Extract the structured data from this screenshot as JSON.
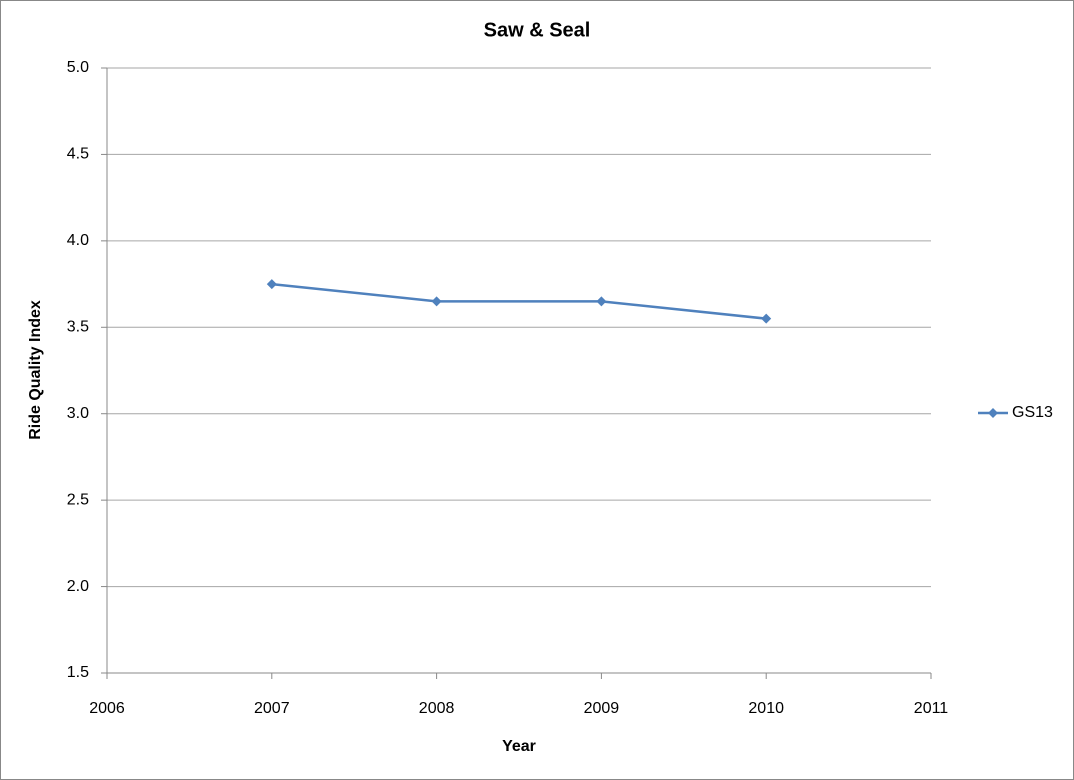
{
  "chart_data": {
    "type": "line",
    "title": "Saw & Seal",
    "xlabel": "Year",
    "ylabel": "Ride Quality Index",
    "x": [
      2007,
      2008,
      2009,
      2010
    ],
    "series": [
      {
        "name": "GS13",
        "color": "#4f81bd",
        "values": [
          3.75,
          3.65,
          3.65,
          3.55
        ]
      }
    ],
    "xlim": [
      2006,
      2011
    ],
    "xticks": [
      2006,
      2007,
      2008,
      2009,
      2010,
      2011
    ],
    "ylim": [
      1.5,
      5.0
    ],
    "yticks": [
      1.5,
      {
        "value": 2.0,
        "label": "2.0"
      },
      2.5,
      {
        "value": 3.0,
        "label": "3.0"
      },
      3.5,
      {
        "value": 4.0,
        "label": "4.0"
      },
      4.5,
      {
        "value": 5.0,
        "label": "5.0"
      }
    ],
    "grid": true,
    "legend": "right"
  }
}
